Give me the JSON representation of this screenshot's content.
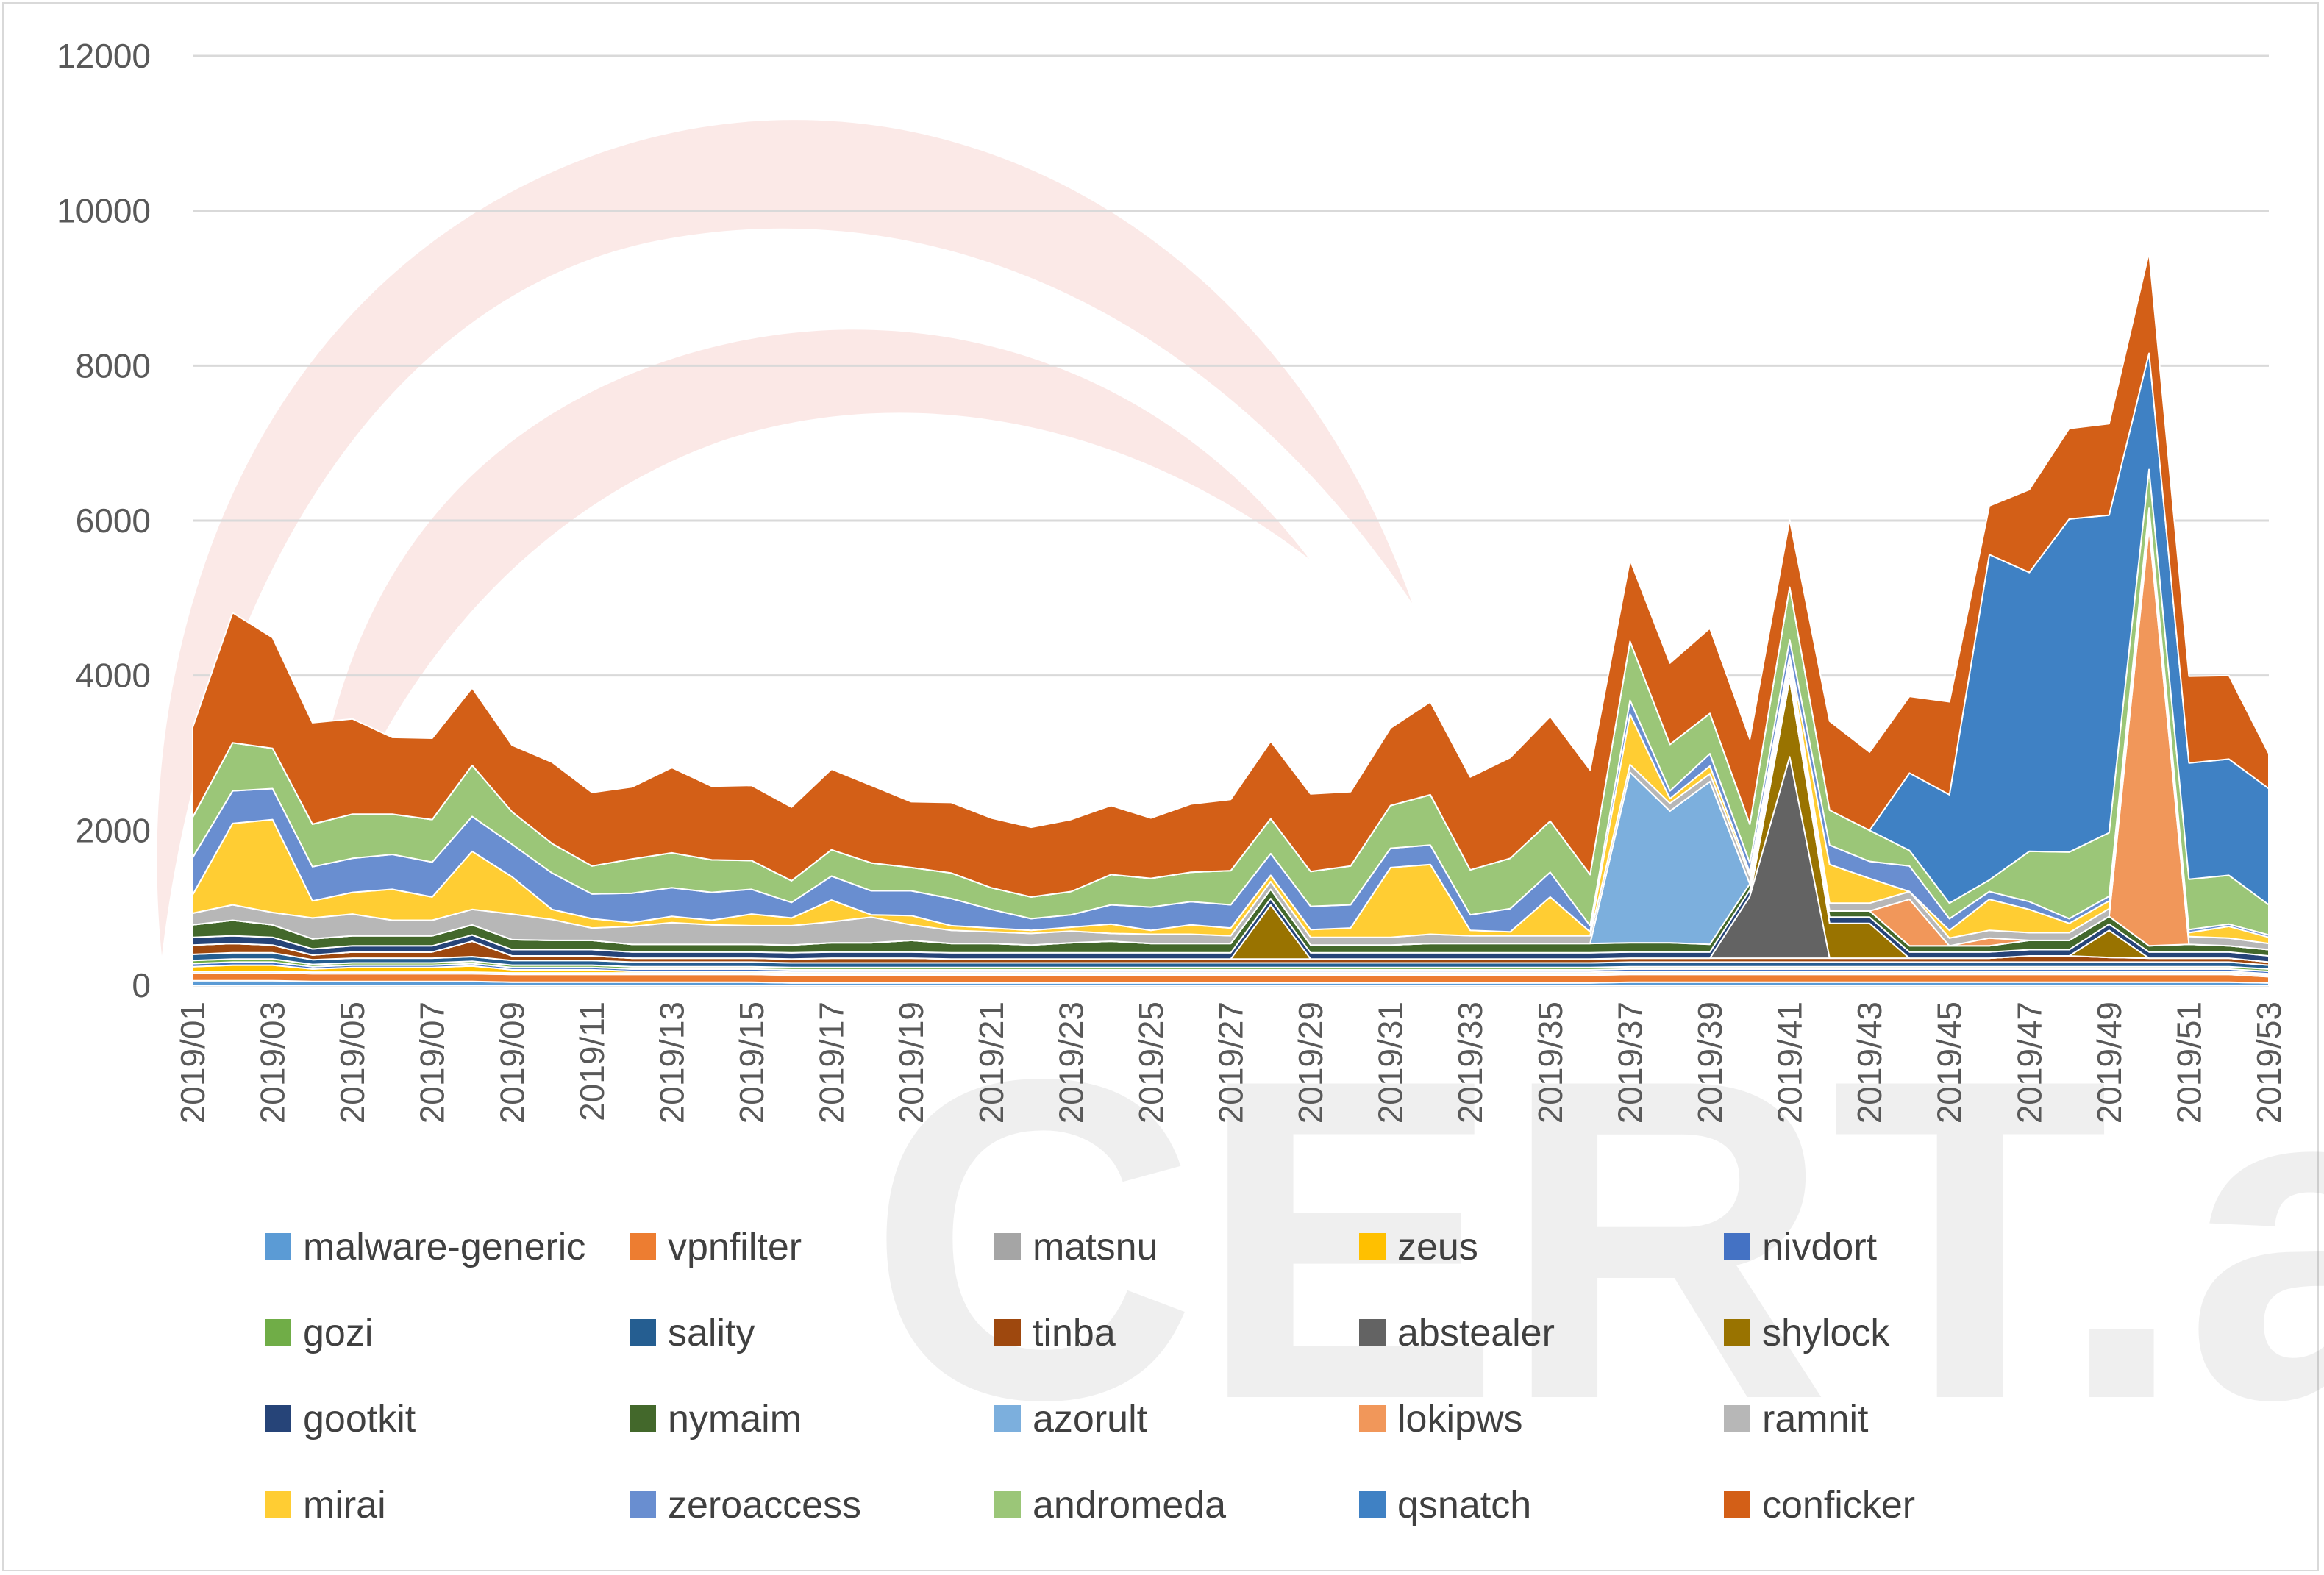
{
  "chart_data": {
    "type": "area",
    "stacked": true,
    "title": "",
    "xlabel": "",
    "ylabel": "",
    "ylim": [
      0,
      12000
    ],
    "yticks": [
      0,
      2000,
      4000,
      6000,
      8000,
      10000,
      12000
    ],
    "grid": true,
    "legend_position": "bottom",
    "watermark": "CERT.at",
    "x": [
      "2019/01",
      "2019/02",
      "2019/03",
      "2019/04",
      "2019/05",
      "2019/06",
      "2019/07",
      "2019/08",
      "2019/09",
      "2019/10",
      "2019/11",
      "2019/12",
      "2019/13",
      "2019/14",
      "2019/15",
      "2019/16",
      "2019/17",
      "2019/18",
      "2019/19",
      "2019/20",
      "2019/21",
      "2019/22",
      "2019/23",
      "2019/24",
      "2019/25",
      "2019/26",
      "2019/27",
      "2019/28",
      "2019/29",
      "2019/30",
      "2019/31",
      "2019/32",
      "2019/33",
      "2019/34",
      "2019/35",
      "2019/36",
      "2019/37",
      "2019/38",
      "2019/39",
      "2019/40",
      "2019/41",
      "2019/42",
      "2019/43",
      "2019/44",
      "2019/45",
      "2019/46",
      "2019/47",
      "2019/48",
      "2019/49",
      "2019/50",
      "2019/51",
      "2019/52",
      "2019/53"
    ],
    "x_tick_labels": [
      "2019/01",
      "2019/03",
      "2019/05",
      "2019/07",
      "2019/09",
      "2019/11",
      "2019/13",
      "2019/15",
      "2019/17",
      "2019/19",
      "2019/21",
      "2019/23",
      "2019/25",
      "2019/27",
      "2019/29",
      "2019/31",
      "2019/33",
      "2019/35",
      "2019/37",
      "2019/39",
      "2019/41",
      "2019/43",
      "2019/45",
      "2019/47",
      "2019/49",
      "2019/51",
      "2019/53"
    ],
    "series": [
      {
        "name": "malware-generic",
        "color": "#5b9bd5",
        "values": [
          60,
          60,
          60,
          50,
          50,
          50,
          50,
          50,
          40,
          40,
          40,
          40,
          40,
          40,
          40,
          30,
          30,
          30,
          30,
          30,
          30,
          30,
          30,
          30,
          30,
          30,
          30,
          30,
          30,
          30,
          30,
          30,
          30,
          30,
          30,
          30,
          40,
          40,
          40,
          40,
          40,
          40,
          40,
          40,
          40,
          40,
          40,
          40,
          40,
          40,
          40,
          40,
          30
        ]
      },
      {
        "name": "vpnfilter",
        "color": "#ed7d31",
        "values": [
          100,
          100,
          100,
          100,
          100,
          100,
          100,
          100,
          100,
          100,
          100,
          100,
          100,
          100,
          100,
          100,
          100,
          100,
          100,
          100,
          100,
          100,
          100,
          100,
          100,
          100,
          100,
          100,
          100,
          100,
          100,
          100,
          100,
          100,
          100,
          100,
          100,
          100,
          100,
          100,
          100,
          100,
          100,
          100,
          100,
          100,
          100,
          100,
          100,
          100,
          100,
          100,
          80
        ]
      },
      {
        "name": "matsnu",
        "color": "#a5a5a5",
        "values": [
          20,
          20,
          20,
          20,
          20,
          20,
          20,
          20,
          20,
          20,
          20,
          20,
          20,
          20,
          20,
          20,
          20,
          20,
          20,
          20,
          20,
          20,
          20,
          20,
          20,
          20,
          20,
          20,
          20,
          20,
          20,
          20,
          20,
          20,
          20,
          20,
          20,
          20,
          20,
          20,
          20,
          20,
          20,
          20,
          20,
          20,
          20,
          20,
          20,
          20,
          20,
          20,
          20
        ]
      },
      {
        "name": "zeus",
        "color": "#ffc000",
        "values": [
          60,
          80,
          80,
          40,
          60,
          60,
          60,
          80,
          40,
          40,
          40,
          20,
          20,
          20,
          20,
          20,
          20,
          20,
          20,
          20,
          20,
          20,
          20,
          20,
          20,
          20,
          20,
          20,
          20,
          20,
          20,
          20,
          20,
          20,
          20,
          20,
          20,
          20,
          20,
          20,
          20,
          20,
          20,
          20,
          20,
          20,
          20,
          20,
          20,
          20,
          20,
          20,
          20
        ]
      },
      {
        "name": "nivdort",
        "color": "#4472c4",
        "values": [
          40,
          40,
          40,
          30,
          30,
          30,
          30,
          30,
          30,
          30,
          30,
          30,
          30,
          30,
          30,
          30,
          30,
          30,
          30,
          30,
          30,
          30,
          30,
          30,
          30,
          30,
          30,
          30,
          30,
          30,
          30,
          30,
          30,
          30,
          30,
          30,
          30,
          30,
          30,
          30,
          30,
          30,
          30,
          30,
          30,
          30,
          30,
          30,
          30,
          30,
          30,
          30,
          30
        ]
      },
      {
        "name": "gozi",
        "color": "#70ad47",
        "values": [
          40,
          40,
          40,
          30,
          30,
          30,
          30,
          30,
          30,
          30,
          30,
          30,
          30,
          30,
          30,
          30,
          30,
          30,
          30,
          30,
          30,
          30,
          30,
          30,
          30,
          30,
          30,
          30,
          30,
          30,
          30,
          30,
          30,
          30,
          30,
          30,
          30,
          30,
          30,
          30,
          30,
          30,
          30,
          30,
          30,
          30,
          30,
          30,
          30,
          30,
          30,
          30,
          30
        ]
      },
      {
        "name": "sality",
        "color": "#255e91",
        "values": [
          80,
          80,
          80,
          60,
          60,
          60,
          60,
          60,
          60,
          60,
          60,
          60,
          60,
          60,
          60,
          60,
          60,
          60,
          60,
          60,
          60,
          60,
          60,
          60,
          60,
          60,
          60,
          60,
          60,
          60,
          60,
          60,
          60,
          60,
          60,
          60,
          60,
          60,
          60,
          60,
          60,
          60,
          60,
          60,
          60,
          60,
          60,
          60,
          60,
          60,
          60,
          60,
          50
        ]
      },
      {
        "name": "tinba",
        "color": "#9e480e",
        "values": [
          120,
          120,
          100,
          60,
          80,
          80,
          80,
          200,
          60,
          60,
          60,
          50,
          50,
          50,
          50,
          50,
          60,
          60,
          60,
          50,
          50,
          50,
          50,
          50,
          50,
          50,
          50,
          50,
          50,
          50,
          50,
          50,
          50,
          50,
          50,
          50,
          50,
          50,
          50,
          50,
          50,
          50,
          50,
          50,
          50,
          50,
          80,
          80,
          60,
          50,
          50,
          50,
          40
        ]
      },
      {
        "name": "abstealer",
        "color": "#636363",
        "values": [
          0,
          0,
          0,
          0,
          0,
          0,
          0,
          0,
          0,
          0,
          0,
          0,
          0,
          0,
          0,
          0,
          0,
          0,
          0,
          0,
          0,
          0,
          0,
          0,
          0,
          0,
          0,
          0,
          0,
          0,
          0,
          0,
          0,
          0,
          0,
          0,
          0,
          0,
          0,
          800,
          2600,
          0,
          0,
          0,
          0,
          0,
          0,
          0,
          0,
          0,
          0,
          0,
          0
        ]
      },
      {
        "name": "shylock",
        "color": "#997300",
        "values": [
          0,
          0,
          0,
          0,
          0,
          0,
          0,
          0,
          0,
          0,
          0,
          0,
          0,
          0,
          0,
          0,
          0,
          0,
          0,
          0,
          0,
          0,
          0,
          0,
          0,
          0,
          0,
          700,
          0,
          0,
          0,
          0,
          0,
          0,
          0,
          0,
          0,
          0,
          0,
          0,
          1000,
          450,
          450,
          0,
          0,
          0,
          0,
          0,
          350,
          0,
          0,
          0,
          0
        ]
      },
      {
        "name": "gootkit",
        "color": "#264478",
        "values": [
          100,
          100,
          100,
          80,
          80,
          80,
          80,
          80,
          80,
          80,
          80,
          80,
          80,
          80,
          80,
          80,
          80,
          80,
          80,
          80,
          80,
          80,
          80,
          80,
          80,
          80,
          80,
          80,
          80,
          80,
          80,
          80,
          80,
          80,
          80,
          80,
          80,
          80,
          80,
          80,
          80,
          80,
          80,
          80,
          80,
          80,
          80,
          80,
          80,
          80,
          80,
          80,
          80
        ]
      },
      {
        "name": "nymaim",
        "color": "#43682b",
        "values": [
          160,
          200,
          160,
          130,
          130,
          130,
          130,
          130,
          130,
          120,
          120,
          100,
          100,
          100,
          100,
          100,
          120,
          120,
          150,
          120,
          120,
          100,
          130,
          150,
          120,
          120,
          120,
          120,
          100,
          100,
          100,
          120,
          120,
          120,
          120,
          120,
          120,
          120,
          100,
          80,
          80,
          80,
          80,
          80,
          80,
          80,
          120,
          120,
          100,
          80,
          100,
          80,
          80
        ]
      },
      {
        "name": "azorult",
        "color": "#7cafdd",
        "values": [
          0,
          0,
          0,
          0,
          0,
          0,
          0,
          0,
          0,
          0,
          0,
          0,
          0,
          0,
          0,
          0,
          0,
          0,
          0,
          0,
          0,
          0,
          0,
          0,
          0,
          0,
          0,
          0,
          0,
          0,
          0,
          0,
          0,
          0,
          0,
          0,
          2200,
          1700,
          2100,
          0,
          0,
          0,
          0,
          0,
          0,
          0,
          0,
          0,
          0,
          0,
          0,
          0,
          0
        ]
      },
      {
        "name": "lokipws",
        "color": "#f1975a",
        "values": [
          0,
          0,
          0,
          0,
          0,
          0,
          0,
          0,
          0,
          0,
          0,
          0,
          0,
          0,
          0,
          0,
          0,
          0,
          0,
          0,
          0,
          0,
          0,
          0,
          0,
          0,
          0,
          0,
          0,
          0,
          0,
          0,
          0,
          0,
          0,
          0,
          0,
          0,
          0,
          0,
          0,
          0,
          0,
          600,
          0,
          100,
          0,
          0,
          0,
          5400,
          0,
          0,
          0
        ]
      },
      {
        "name": "ramnit",
        "color": "#b7b7b7",
        "values": [
          150,
          200,
          160,
          270,
          280,
          200,
          200,
          200,
          330,
          270,
          160,
          230,
          280,
          250,
          240,
          250,
          270,
          330,
          200,
          170,
          150,
          150,
          150,
          100,
          120,
          120,
          100,
          100,
          100,
          100,
          100,
          120,
          100,
          100,
          100,
          100,
          100,
          100,
          100,
          100,
          100,
          100,
          100,
          100,
          100,
          100,
          100,
          100,
          100,
          100,
          100,
          100,
          80
        ]
      },
      {
        "name": "mirai",
        "color": "#ffcd33",
        "values": [
          240,
          1050,
          1200,
          220,
          280,
          400,
          300,
          750,
          480,
          130,
          120,
          50,
          80,
          60,
          150,
          100,
          280,
          30,
          120,
          60,
          50,
          40,
          50,
          120,
          50,
          120,
          100,
          80,
          100,
          120,
          900,
          900,
          70,
          50,
          500,
          50,
          650,
          60,
          100,
          50,
          50,
          500,
          320,
          0,
          100,
          400,
          300,
          120,
          100,
          100,
          50,
          150,
          80
        ]
      },
      {
        "name": "zeroaccess",
        "color": "#698ed0",
        "values": [
          480,
          420,
          400,
          440,
          440,
          450,
          450,
          450,
          420,
          470,
          320,
          380,
          370,
          360,
          320,
          200,
          310,
          310,
          320,
          350,
          240,
          150,
          160,
          250,
          300,
          300,
          300,
          280,
          300,
          300,
          250,
          250,
          200,
          300,
          320,
          80,
          180,
          100,
          160,
          120,
          200,
          250,
          220,
          330,
          150,
          100,
          100,
          60,
          60,
          50,
          40,
          30,
          30
        ]
      },
      {
        "name": "andromeda",
        "color": "#9bc678",
        "values": [
          520,
          620,
          520,
          550,
          570,
          520,
          550,
          660,
          420,
          380,
          360,
          440,
          450,
          420,
          370,
          280,
          340,
          360,
          300,
          330,
          280,
          280,
          300,
          390,
          370,
          380,
          440,
          450,
          450,
          500,
          550,
          650,
          580,
          650,
          660,
          660,
          760,
          600,
          520,
          500,
          680,
          450,
          400,
          200,
          200,
          150,
          650,
          860,
          820,
          500,
          650,
          630,
          390
        ]
      },
      {
        "name": "qsnatch",
        "color": "#3f81c4",
        "values": [
          0,
          0,
          0,
          0,
          0,
          0,
          0,
          0,
          0,
          0,
          0,
          0,
          0,
          0,
          0,
          0,
          0,
          0,
          0,
          0,
          0,
          0,
          0,
          0,
          0,
          0,
          0,
          0,
          0,
          0,
          0,
          0,
          0,
          0,
          0,
          0,
          0,
          0,
          0,
          0,
          0,
          0,
          0,
          1000,
          1400,
          4200,
          3600,
          4300,
          4100,
          1500,
          1500,
          1500,
          1500
        ]
      },
      {
        "name": "conficker",
        "color": "#d35f17",
        "values": [
          1160,
          1680,
          1430,
          1310,
          1230,
          990,
          1050,
          1000,
          860,
          1050,
          950,
          930,
          1100,
          950,
          970,
          950,
          1040,
          1000,
          850,
          910,
          900,
          900,
          930,
          890,
          780,
          880,
          920,
          1000,
          1000,
          960,
          1000,
          1200,
          1200,
          1300,
          1350,
          1350,
          1050,
          1050,
          1100,
          1100,
          870,
          1150,
          1010,
          990,
          1200,
          630,
          1070,
          1170,
          1180,
          1300,
          1120,
          1080,
          450
        ]
      }
    ]
  }
}
